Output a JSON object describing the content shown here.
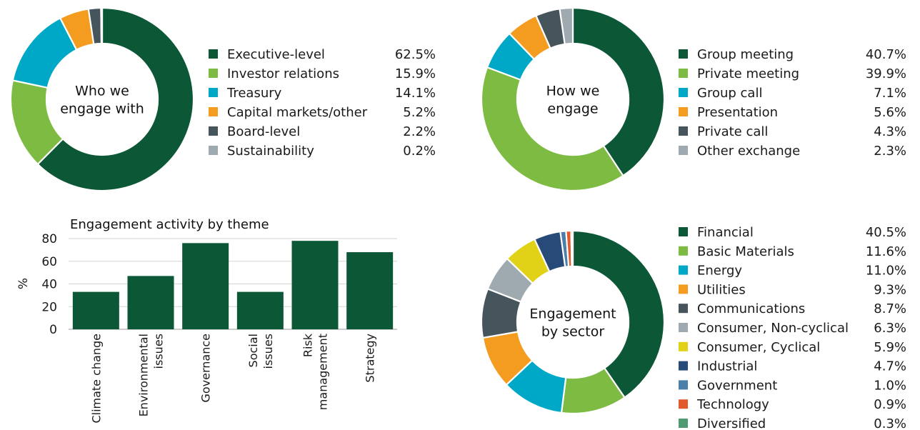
{
  "chart_data": [
    {
      "type": "pie",
      "variant": "donut",
      "center_label": [
        "Who we",
        "engage with"
      ],
      "categories": [
        "Executive-level",
        "Investor relations",
        "Treasury",
        "Capital markets/other",
        "Board-level",
        "Sustainability"
      ],
      "values": [
        62.5,
        15.9,
        14.1,
        5.2,
        2.2,
        0.2
      ],
      "value_labels": [
        "62.5%",
        "15.9%",
        "14.1%",
        "5.2%",
        "2.2%",
        "0.2%"
      ],
      "colors": [
        "#0b5736",
        "#7dbb42",
        "#00a8c8",
        "#f39c1f",
        "#46545c",
        "#9eaab0"
      ],
      "legend": "right"
    },
    {
      "type": "pie",
      "variant": "donut",
      "center_label": [
        "How we",
        "engage"
      ],
      "categories": [
        "Group meeting",
        "Private meeting",
        "Group call",
        "Presentation",
        "Private call",
        "Other exchange"
      ],
      "values": [
        40.7,
        39.9,
        7.1,
        5.6,
        4.3,
        2.3
      ],
      "value_labels": [
        "40.7%",
        "39.9%",
        "7.1%",
        "5.6%",
        "4.3%",
        "2.3%"
      ],
      "colors": [
        "#0b5736",
        "#7dbb42",
        "#00a8c8",
        "#f39c1f",
        "#46545c",
        "#9eaab0"
      ],
      "legend": "right"
    },
    {
      "type": "bar",
      "title": "Engagement activity by theme",
      "ylabel": "%",
      "ylim": [
        0,
        80
      ],
      "yticks": [
        0,
        20,
        40,
        60,
        80
      ],
      "grid": true,
      "categories": [
        [
          "Climate change"
        ],
        [
          "Environmental",
          "issues"
        ],
        [
          "Governance"
        ],
        [
          "Social",
          "issues"
        ],
        [
          "Risk",
          "management"
        ],
        [
          "Strategy"
        ]
      ],
      "values": [
        33,
        47,
        76,
        33,
        78,
        68
      ],
      "color": "#0b5736"
    },
    {
      "type": "pie",
      "variant": "donut",
      "center_label": [
        "Engagement",
        "by sector"
      ],
      "categories": [
        "Financial",
        "Basic Materials",
        "Energy",
        "Utilities",
        "Communications",
        "Consumer, Non-cyclical",
        "Consumer, Cyclical",
        "Industrial",
        "Government",
        "Technology",
        "Diversified"
      ],
      "values": [
        40.5,
        11.6,
        11.0,
        9.3,
        8.7,
        6.3,
        5.9,
        4.7,
        1.0,
        0.9,
        0.3
      ],
      "value_labels": [
        "40.5%",
        "11.6%",
        "11.0%",
        "9.3%",
        "8.7%",
        "6.3%",
        "5.9%",
        "4.7%",
        "1.0%",
        "0.9%",
        "0.3%"
      ],
      "colors": [
        "#0b5736",
        "#7dbb42",
        "#00a8c8",
        "#f39c1f",
        "#46545c",
        "#9eaab0",
        "#e1d218",
        "#284a78",
        "#4a7fa8",
        "#e15a2b",
        "#4e9a72"
      ],
      "legend": "right"
    }
  ]
}
